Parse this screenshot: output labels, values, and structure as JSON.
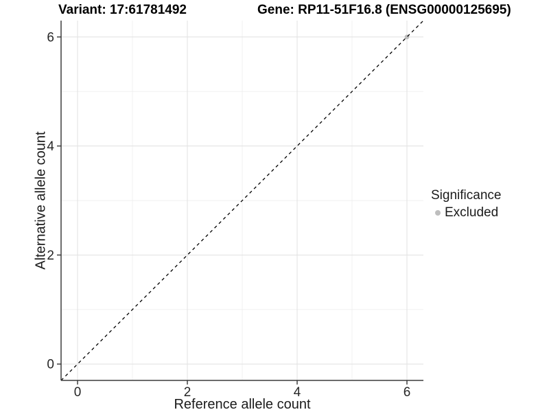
{
  "header": {
    "variant_title": "Variant: 17:61781492",
    "gene_title": "Gene: RP11-51F16.8 (ENSG00000125695)"
  },
  "chart_data": {
    "type": "scatter",
    "xlabel": "Reference allele count",
    "ylabel": "Alternative allele count",
    "xlim": [
      -0.3,
      6.3
    ],
    "ylim": [
      -0.3,
      6.3
    ],
    "x_major_ticks": [
      0,
      2,
      4,
      6
    ],
    "y_major_ticks": [
      0,
      2,
      4,
      6
    ],
    "x_minor_ticks": [
      1,
      3,
      5
    ],
    "y_minor_ticks": [
      1,
      3,
      5
    ],
    "grid": true,
    "series": [
      {
        "name": "Excluded",
        "color": "#bebebe",
        "points": [
          [
            6,
            6
          ]
        ]
      }
    ],
    "reference_line": {
      "type": "identity",
      "style": "dashed",
      "from": [
        -0.3,
        -0.3
      ],
      "to": [
        6.3,
        6.3
      ],
      "color": "#000000"
    },
    "legend": {
      "title": "Significance",
      "position": "right",
      "items": [
        {
          "label": "Excluded",
          "color": "#bebebe"
        }
      ]
    }
  },
  "colors": {
    "background": "#ffffff",
    "grid_major": "#e3e3e3",
    "grid_minor": "#efefef",
    "axis_line": "#3c3c3c",
    "tick_mark": "#333333",
    "tick_label": "#262626",
    "title_text": "#000000",
    "excluded_point": "#bebebe",
    "reference_line": "#000000"
  }
}
